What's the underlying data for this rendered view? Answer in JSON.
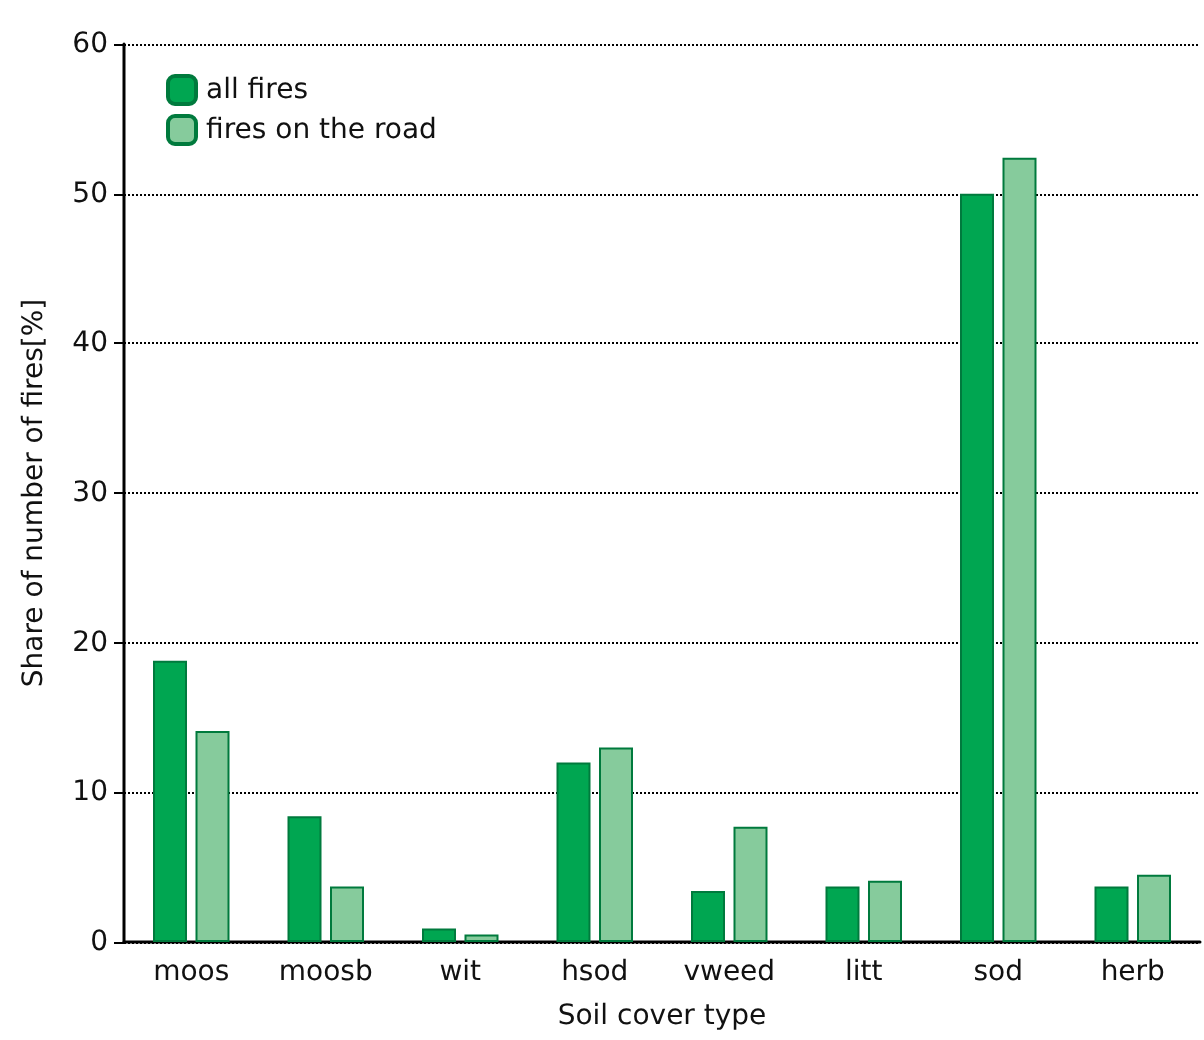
{
  "chart_data": {
    "type": "bar",
    "xlabel": "Soil cover type",
    "ylabel": "Share of number of fires[%]",
    "categories": [
      "moos",
      "moosb",
      "wit",
      "hsod",
      "vweed",
      "litt",
      "sod",
      "herb"
    ],
    "series": [
      {
        "name": "all fires",
        "color": "#00a651",
        "values": [
          18.8,
          8.4,
          0.9,
          12.0,
          3.4,
          3.7,
          50.0,
          3.7
        ]
      },
      {
        "name": "fires on the road",
        "color": "#86cb9c",
        "values": [
          14.1,
          3.7,
          0.5,
          13.0,
          7.7,
          4.1,
          52.4,
          4.5
        ]
      }
    ],
    "ylim": [
      0,
      60
    ],
    "yticks": [
      0,
      10,
      20,
      30,
      40,
      50,
      60
    ],
    "grid": "y",
    "legend": "top left"
  }
}
